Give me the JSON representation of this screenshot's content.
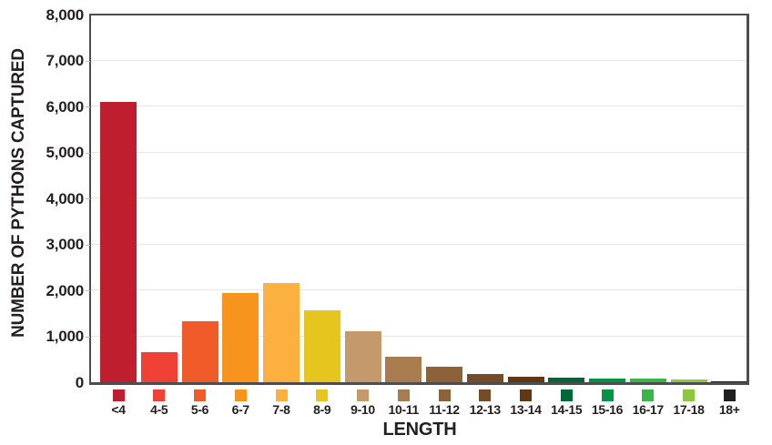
{
  "chart_data": {
    "type": "bar",
    "title": "",
    "xlabel": "LENGTH",
    "ylabel": "NUMBER OF PYTHONS CAPTURED",
    "ylim": [
      0,
      8000
    ],
    "ytick_interval": 1000,
    "ytick_labels": [
      "0",
      "1,000",
      "2,000",
      "3,000",
      "4,000",
      "5,000",
      "6,000",
      "7,000",
      "8,000"
    ],
    "categories": [
      "<4",
      "4-5",
      "5-6",
      "6-7",
      "7-8",
      "8-9",
      "9-10",
      "10-11",
      "11-12",
      "12-13",
      "13-14",
      "14-15",
      "15-16",
      "16-17",
      "17-18",
      "18+"
    ],
    "values": [
      6100,
      650,
      1330,
      1940,
      2150,
      1560,
      1110,
      560,
      330,
      175,
      110,
      105,
      75,
      70,
      50,
      25
    ],
    "bar_colors": [
      "#BE1E2D",
      "#EF4136",
      "#F15A29",
      "#F7941D",
      "#FBB040",
      "#E6C51F",
      "#C49A6C",
      "#A97C50",
      "#8C6239",
      "#754C29",
      "#603913",
      "#006838",
      "#009444",
      "#39B54A",
      "#8DC63F",
      "#231F20"
    ],
    "legend_position": "below-x-axis-swatches",
    "grid": true,
    "grid_color": "#E6E7E8",
    "frame_color": "#4D4D4F",
    "tick_color": "#BCBEC0",
    "text_color": "#231F20"
  }
}
